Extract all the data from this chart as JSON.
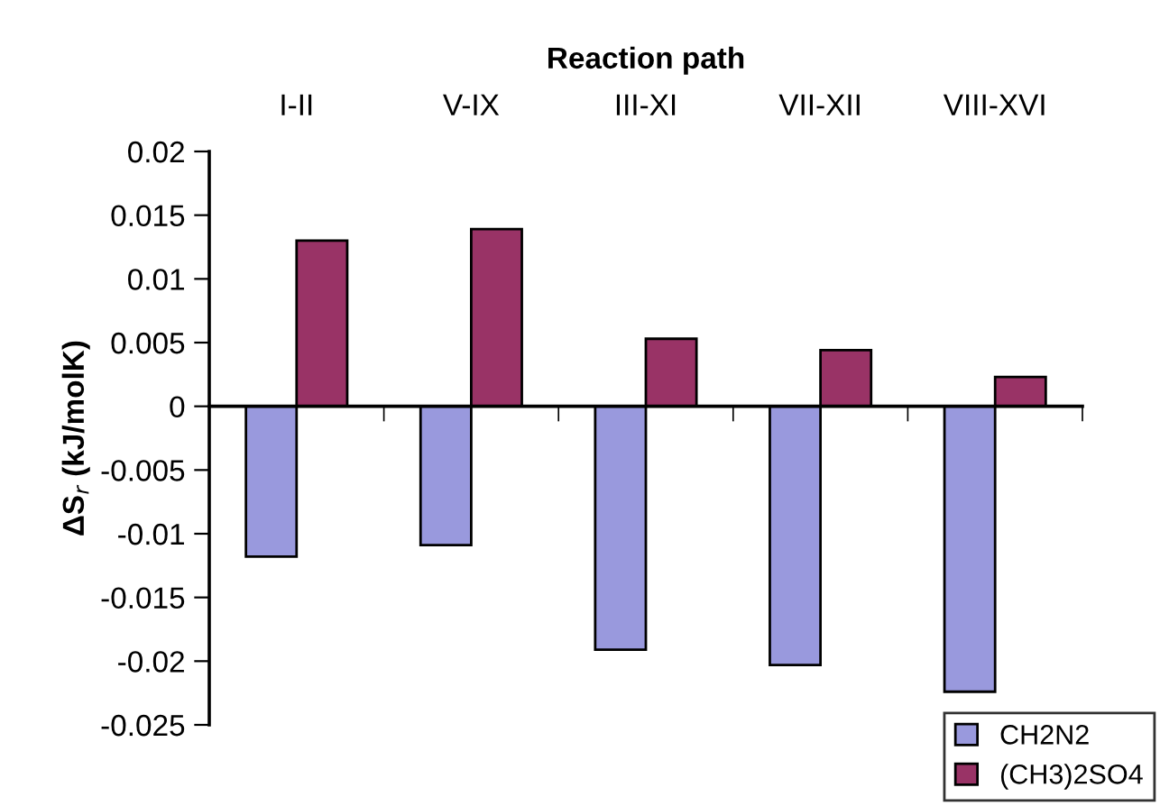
{
  "chart_data": {
    "type": "bar",
    "xlabel": "Reaction path",
    "ylabel": "ΔS$_{r}$ (kJ/molK)",
    "categories": [
      "I-II",
      "V-IX",
      "III-XI",
      "VII-XII",
      "VIII-XVI"
    ],
    "series": [
      {
        "name": "CH2N2",
        "color": "#9999dd",
        "values": [
          -0.0118,
          -0.0109,
          -0.0191,
          -0.0203,
          -0.0224
        ]
      },
      {
        "name": "(CH3)2SO4",
        "color": "#993366",
        "values": [
          0.013,
          0.0139,
          0.0053,
          0.0044,
          0.0023
        ]
      }
    ],
    "ylim": [
      -0.025,
      0.02
    ],
    "yticks": [
      -0.025,
      -0.02,
      -0.015,
      -0.01,
      -0.005,
      0,
      0.005,
      0.01,
      0.015,
      0.02
    ],
    "legend": "bottom right"
  }
}
